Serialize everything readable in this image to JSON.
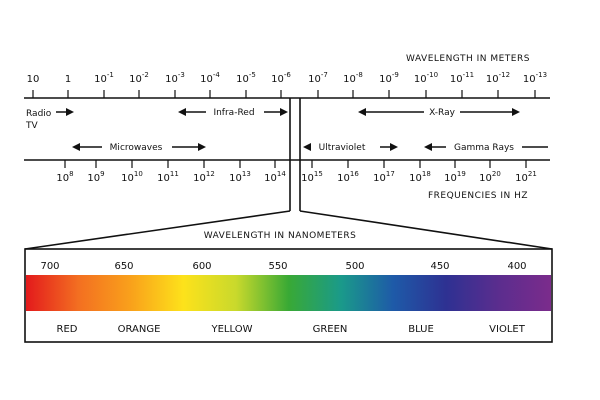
{
  "wavelength_axis": {
    "title": "WAVELENGTH IN METERS",
    "ticks": [
      {
        "base": "10",
        "exp": ""
      },
      {
        "base": "1",
        "exp": ""
      },
      {
        "base": "10",
        "exp": "-1"
      },
      {
        "base": "10",
        "exp": "-2"
      },
      {
        "base": "10",
        "exp": "-3"
      },
      {
        "base": "10",
        "exp": "-4"
      },
      {
        "base": "10",
        "exp": "-5"
      },
      {
        "base": "10",
        "exp": "-6"
      },
      {
        "base": "10",
        "exp": "-7"
      },
      {
        "base": "10",
        "exp": "-8"
      },
      {
        "base": "10",
        "exp": "-9"
      },
      {
        "base": "10",
        "exp": "-10"
      },
      {
        "base": "10",
        "exp": "-11"
      },
      {
        "base": "10",
        "exp": "-12"
      },
      {
        "base": "10",
        "exp": "-13"
      }
    ]
  },
  "frequency_axis": {
    "title": "FREQUENCIES IN HZ",
    "ticks": [
      {
        "base": "10",
        "exp": "8"
      },
      {
        "base": "10",
        "exp": "9"
      },
      {
        "base": "10",
        "exp": "10"
      },
      {
        "base": "10",
        "exp": "11"
      },
      {
        "base": "10",
        "exp": "12"
      },
      {
        "base": "10",
        "exp": "13"
      },
      {
        "base": "10",
        "exp": "14"
      },
      {
        "base": "10",
        "exp": "15"
      },
      {
        "base": "10",
        "exp": "16"
      },
      {
        "base": "10",
        "exp": "17"
      },
      {
        "base": "10",
        "exp": "18"
      },
      {
        "base": "10",
        "exp": "19"
      },
      {
        "base": "10",
        "exp": "20"
      },
      {
        "base": "10",
        "exp": "21"
      }
    ]
  },
  "regions": {
    "radio_line1": "Radio",
    "radio_line2": "TV",
    "infrared": "Infra-Red",
    "xray": "X-Ray",
    "microwaves": "Microwaves",
    "ultraviolet": "Ultraviolet",
    "gamma": "Gamma Rays"
  },
  "visible": {
    "title": "WAVELENGTH IN NANOMETERS",
    "nm_labels": [
      "700",
      "650",
      "600",
      "550",
      "500",
      "450",
      "400"
    ],
    "color_names": [
      "RED",
      "ORANGE",
      "YELLOW",
      "GREEN",
      "BLUE",
      "VIOLET"
    ],
    "gradient_colors": [
      "#e31a1c",
      "#f36f21",
      "#f9a11b",
      "#fde21b",
      "#c9d92c",
      "#39a935",
      "#1a9a8a",
      "#1e5aa8",
      "#2e3192",
      "#5b2d8e",
      "#7b2c8c"
    ]
  }
}
